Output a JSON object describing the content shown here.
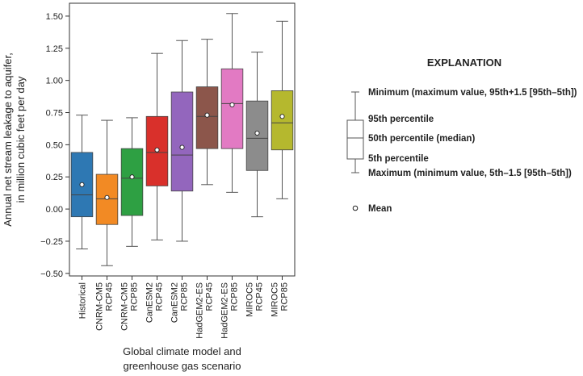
{
  "chart_data": {
    "type": "boxplot",
    "ylabel_lines": [
      "Annual net stream leakage to aquifer,",
      "in million cubic feet per day"
    ],
    "xlabel_lines": [
      "Global climate model and",
      "greenhouse gas scenario"
    ],
    "ylim": [
      -0.52,
      1.6
    ],
    "yticks": [
      -0.5,
      -0.25,
      0.0,
      0.25,
      0.5,
      0.75,
      1.0,
      1.25,
      1.5
    ],
    "ytick_labels": [
      "−0.50",
      "−0.25",
      "0.00",
      "0.25",
      "0.50",
      "0.75",
      "1.00",
      "1.25",
      "1.50"
    ],
    "grid": false,
    "categories": [
      {
        "lines": [
          "Historical"
        ],
        "color": "#2e78b3",
        "whisker_low": -0.31,
        "p5": -0.06,
        "median": 0.11,
        "p95": 0.44,
        "whisker_high": 0.73,
        "mean": 0.19
      },
      {
        "lines": [
          "CNRM-CM5",
          "RCP45"
        ],
        "color": "#f28a24",
        "whisker_low": -0.44,
        "p5": -0.12,
        "median": 0.08,
        "p95": 0.27,
        "whisker_high": 0.69,
        "mean": 0.09
      },
      {
        "lines": [
          "CNRM-CM5",
          "RCP85"
        ],
        "color": "#2ea043",
        "whisker_low": -0.29,
        "p5": -0.05,
        "median": 0.24,
        "p95": 0.47,
        "whisker_high": 0.71,
        "mean": 0.25
      },
      {
        "lines": [
          "CanESM2",
          "RCP45"
        ],
        "color": "#d9302b",
        "whisker_low": -0.24,
        "p5": 0.18,
        "median": 0.44,
        "p95": 0.72,
        "whisker_high": 1.21,
        "mean": 0.46
      },
      {
        "lines": [
          "CanESM2",
          "RCP85"
        ],
        "color": "#9366bd",
        "whisker_low": -0.25,
        "p5": 0.14,
        "median": 0.42,
        "p95": 0.91,
        "whisker_high": 1.31,
        "mean": 0.48
      },
      {
        "lines": [
          "HadGEM2-ES",
          "RCP45"
        ],
        "color": "#8c564b",
        "whisker_low": 0.19,
        "p5": 0.47,
        "median": 0.72,
        "p95": 0.95,
        "whisker_high": 1.32,
        "mean": 0.73
      },
      {
        "lines": [
          "HadGEM2-ES",
          "RCP85"
        ],
        "color": "#e27ac3",
        "whisker_low": 0.13,
        "p5": 0.47,
        "median": 0.82,
        "p95": 1.09,
        "whisker_high": 1.52,
        "mean": 0.81
      },
      {
        "lines": [
          "MIROC5",
          "RCP45"
        ],
        "color": "#8c8c8c",
        "whisker_low": -0.06,
        "p5": 0.3,
        "median": 0.55,
        "p95": 0.84,
        "whisker_high": 1.22,
        "mean": 0.59
      },
      {
        "lines": [
          "MIROC5",
          "RCP85"
        ],
        "color": "#b5b82e",
        "whisker_low": 0.08,
        "p5": 0.46,
        "median": 0.67,
        "p95": 0.92,
        "whisker_high": 1.46,
        "mean": 0.72
      }
    ],
    "legend": {
      "title": "EXPLANATION",
      "minimum": "Minimum (maximum value, 95th+1.5 [95th–5th])",
      "p95": "95th percentile",
      "median": "50th percentile (median)",
      "p5": "5th percentile",
      "maximum": "Maximum (minimum value, 5th–1.5 [95th–5th])",
      "mean": "Mean"
    }
  }
}
